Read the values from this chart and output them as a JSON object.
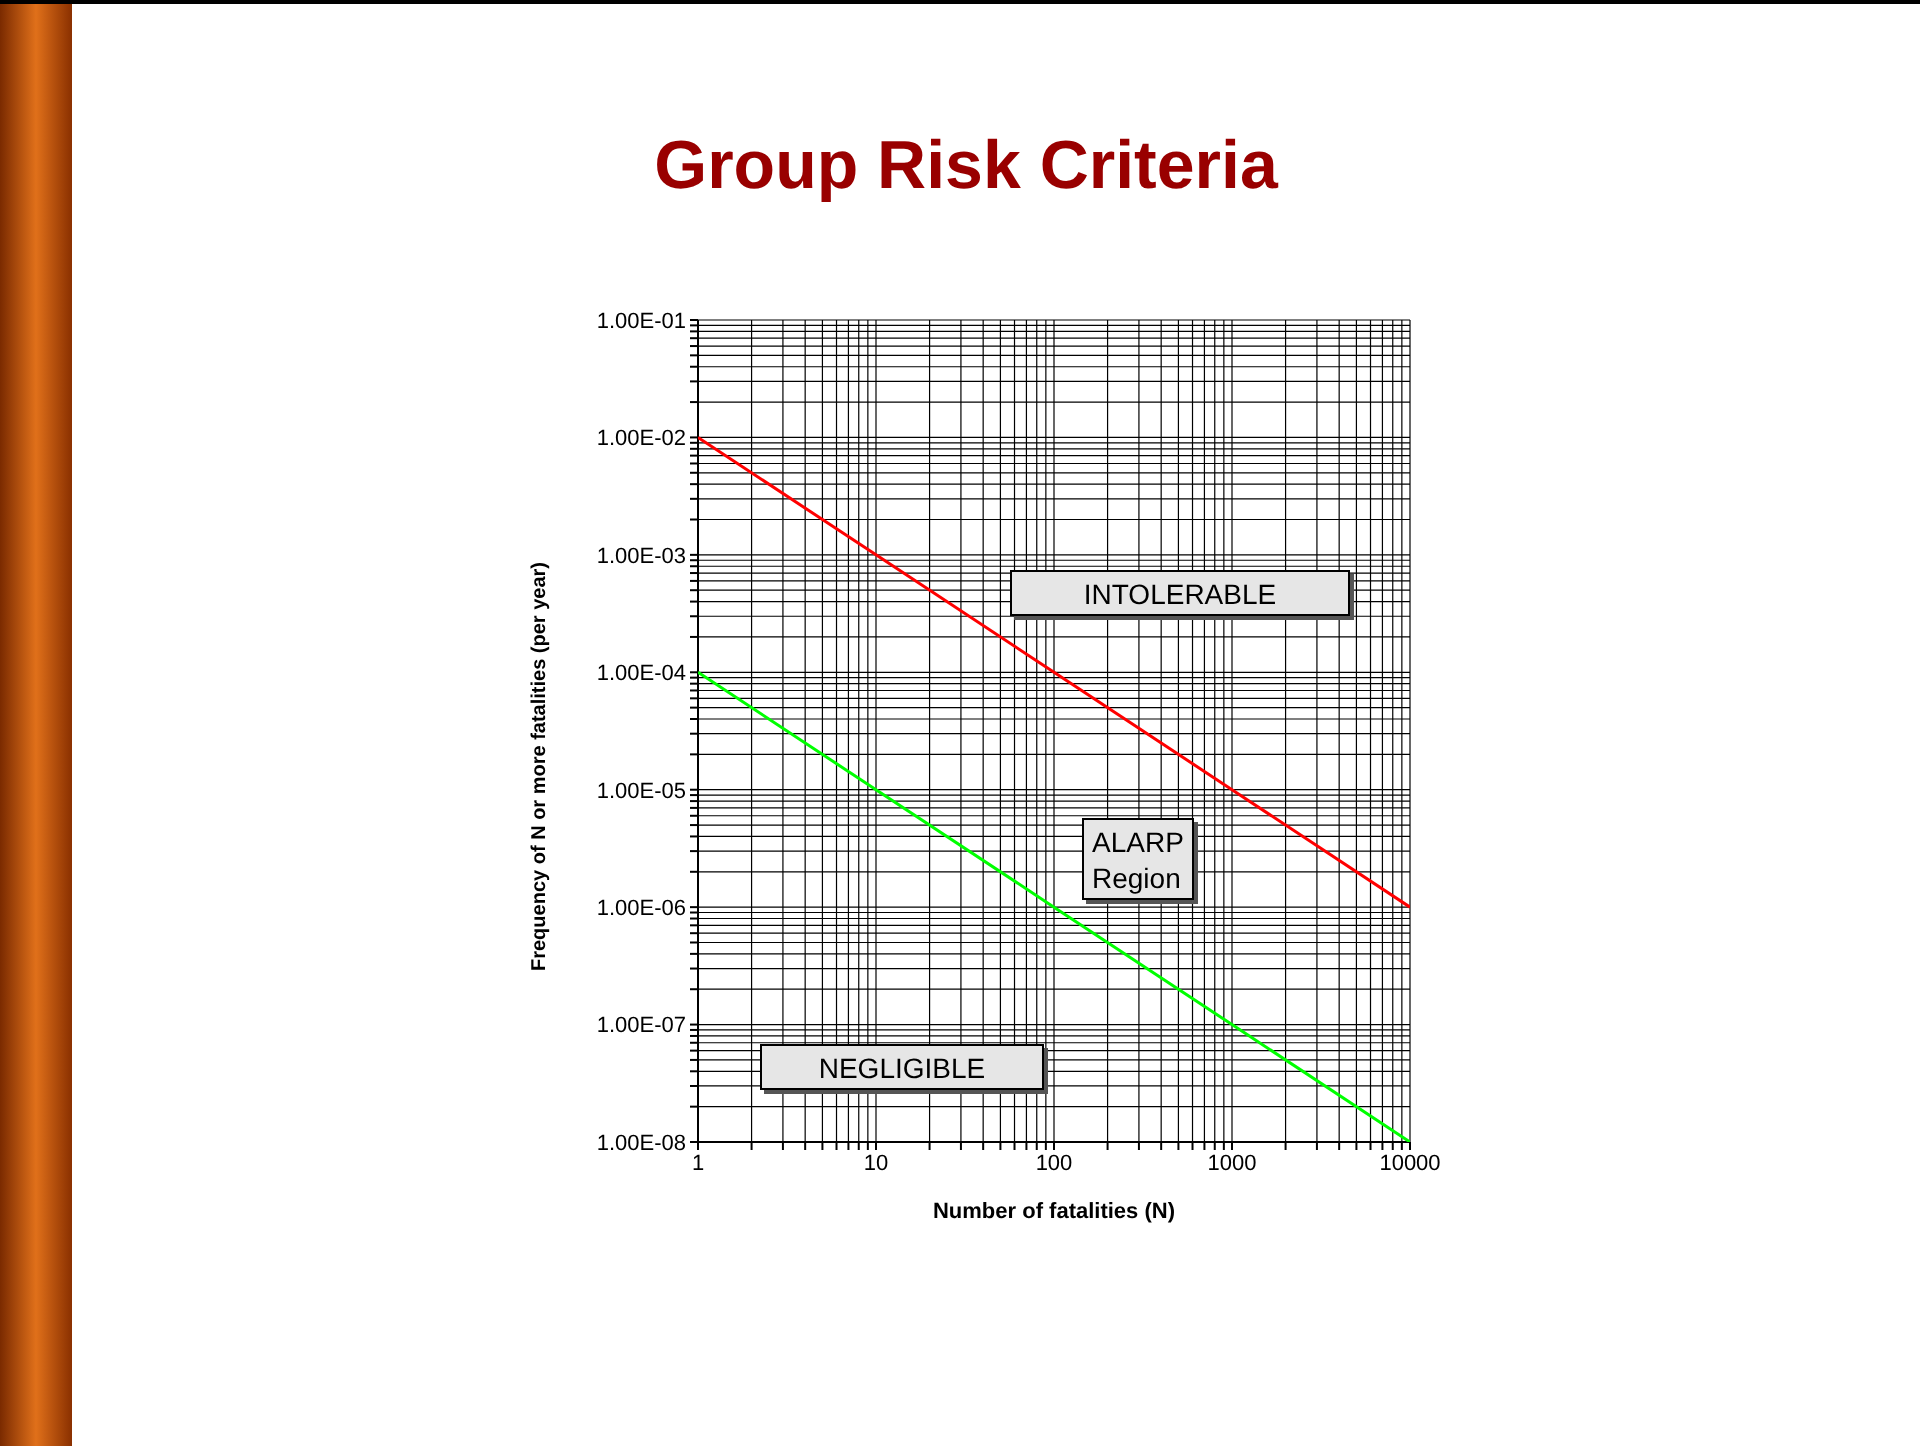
{
  "chart_data": {
    "type": "line",
    "title": "Group Risk Criteria",
    "xlabel": "Number of fatalities (N)",
    "ylabel": "Frequency of N or more fatalities (per year)",
    "annotations": [
      "INTOLERABLE",
      "ALARP Region",
      "NEGLIGIBLE"
    ],
    "log": "xy",
    "grid": true,
    "legend": false,
    "marker": "none",
    "line_style": "solid",
    "x": [
      1,
      10,
      100,
      1000,
      10000
    ],
    "xlim": [
      1,
      10000
    ],
    "ylim": [
      1e-08,
      0.1
    ],
    "xticks": [
      1,
      {
        "value": 2,
        "label": null
      },
      {
        "value": 3,
        "label": null
      },
      {
        "value": 4,
        "label": null
      },
      {
        "value": 5,
        "label": null
      },
      {
        "value": 6,
        "label": null
      },
      {
        "value": 7,
        "label": null
      },
      {
        "value": 8,
        "label": null
      },
      {
        "value": 9,
        "label": null
      },
      10,
      {
        "value": 20,
        "label": null
      },
      {
        "value": 30,
        "label": null
      },
      {
        "value": 40,
        "label": null
      },
      {
        "value": 50,
        "label": null
      },
      {
        "value": 60,
        "label": null
      },
      {
        "value": 70,
        "label": null
      },
      {
        "value": 80,
        "label": null
      },
      {
        "value": 90,
        "label": null
      },
      100,
      {
        "value": 200,
        "label": null
      },
      {
        "value": 300,
        "label": null
      },
      {
        "value": 400,
        "label": null
      },
      {
        "value": 500,
        "label": null
      },
      {
        "value": 600,
        "label": null
      },
      {
        "value": 700,
        "label": null
      },
      {
        "value": 800,
        "label": null
      },
      {
        "value": 900,
        "label": null
      },
      1000,
      {
        "value": 2000,
        "label": null
      },
      {
        "value": 3000,
        "label": null
      },
      {
        "value": 4000,
        "label": null
      },
      {
        "value": 5000,
        "label": null
      },
      {
        "value": 6000,
        "label": null
      },
      {
        "value": 7000,
        "label": null
      },
      {
        "value": 8000,
        "label": null
      },
      {
        "value": 9000,
        "label": null
      },
      10000
    ],
    "yticks": [
      {
        "value": 1e-08,
        "label": "1.00E-08"
      },
      {
        "value": 2e-08,
        "label": null
      },
      {
        "value": 3e-08,
        "label": null
      },
      {
        "value": 4e-08,
        "label": null
      },
      {
        "value": 5e-08,
        "label": null
      },
      {
        "value": 6e-08,
        "label": null
      },
      {
        "value": 7e-08,
        "label": null
      },
      {
        "value": 8e-08,
        "label": null
      },
      {
        "value": 9e-08,
        "label": null
      },
      {
        "value": 1e-07,
        "label": "1.00E-07"
      },
      {
        "value": 2e-07,
        "label": null
      },
      {
        "value": 3e-07,
        "label": null
      },
      {
        "value": 4e-07,
        "label": null
      },
      {
        "value": 5e-07,
        "label": null
      },
      {
        "value": 6e-07,
        "label": null
      },
      {
        "value": 7e-07,
        "label": null
      },
      {
        "value": 8e-07,
        "label": null
      },
      {
        "value": 9e-07,
        "label": null
      },
      {
        "value": 1e-06,
        "label": "1.00E-06"
      },
      {
        "value": 2e-06,
        "label": null
      },
      {
        "value": 3e-06,
        "label": null
      },
      {
        "value": 4e-06,
        "label": null
      },
      {
        "value": 5e-06,
        "label": null
      },
      {
        "value": 6e-06,
        "label": null
      },
      {
        "value": 7e-06,
        "label": null
      },
      {
        "value": 8e-06,
        "label": null
      },
      {
        "value": 9e-06,
        "label": null
      },
      {
        "value": 1e-05,
        "label": "1.00E-05"
      },
      {
        "value": 2e-05,
        "label": null
      },
      {
        "value": 3e-05,
        "label": null
      },
      {
        "value": 4e-05,
        "label": null
      },
      {
        "value": 5e-05,
        "label": null
      },
      {
        "value": 6e-05,
        "label": null
      },
      {
        "value": 7e-05,
        "label": null
      },
      {
        "value": 8e-05,
        "label": null
      },
      {
        "value": 9e-05,
        "label": null
      },
      {
        "value": 0.0001,
        "label": "1.00E-04"
      },
      {
        "value": 0.0002,
        "label": null
      },
      {
        "value": 0.0003,
        "label": null
      },
      {
        "value": 0.0004,
        "label": null
      },
      {
        "value": 0.0005,
        "label": null
      },
      {
        "value": 0.0006,
        "label": null
      },
      {
        "value": 0.0007,
        "label": null
      },
      {
        "value": 0.0008,
        "label": null
      },
      {
        "value": 0.0009,
        "label": null
      },
      {
        "value": 0.001,
        "label": "1.00E-03"
      },
      {
        "value": 0.002,
        "label": null
      },
      {
        "value": 0.003,
        "label": null
      },
      {
        "value": 0.004,
        "label": null
      },
      {
        "value": 0.005,
        "label": null
      },
      {
        "value": 0.006,
        "label": null
      },
      {
        "value": 0.007,
        "label": null
      },
      {
        "value": 0.008,
        "label": null
      },
      {
        "value": 0.009,
        "label": null
      },
      {
        "value": 0.01,
        "label": "1.00E-02"
      },
      {
        "value": 0.02,
        "label": null
      },
      {
        "value": 0.03,
        "label": null
      },
      {
        "value": 0.04,
        "label": null
      },
      {
        "value": 0.05,
        "label": null
      },
      {
        "value": 0.06,
        "label": null
      },
      {
        "value": 0.07,
        "label": null
      },
      {
        "value": 0.08,
        "label": null
      },
      {
        "value": 0.09,
        "label": null
      },
      {
        "value": 0.1,
        "label": "1.00E-01"
      }
    ],
    "series": [
      {
        "color": "#ff0000",
        "values": [
          0.01,
          0.001,
          0.0001,
          1e-05,
          1e-06
        ]
      },
      {
        "color": "#00ff00",
        "values": [
          0.0001,
          1e-05,
          1e-06,
          1e-07,
          1e-08
        ]
      }
    ]
  }
}
